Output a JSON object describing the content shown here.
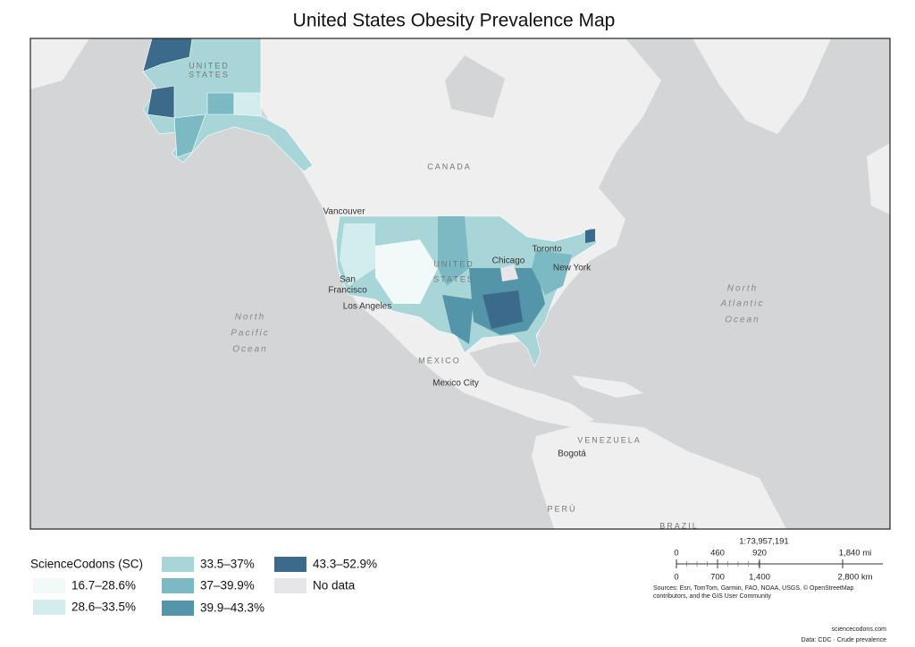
{
  "title": "United States Obesity Prevalence Map",
  "map": {
    "labels": {
      "canada": "CANADA",
      "alaska_us": [
        "UNITED",
        "STATES"
      ],
      "vancouver": "Vancouver",
      "toronto": "Toronto",
      "chicago": "Chicago",
      "new_york": "New York",
      "us": [
        "UNITED",
        "STATES"
      ],
      "san_francisco": [
        "San",
        "Francisco"
      ],
      "los_angeles": "Los Angeles",
      "north_pacific": [
        "North",
        "Pacific",
        "Ocean"
      ],
      "north_atlantic": [
        "North",
        "Atlantic",
        "Ocean"
      ],
      "mexico": "MÉXICO",
      "mexico_city": "Mexico City",
      "venezuela": "VENEZUELA",
      "bogota": "Bogotá",
      "peru": "PERÚ",
      "brazil": "BRAZIL"
    }
  },
  "legend": {
    "title": "ScienceCodons (SC)",
    "items": [
      {
        "label": "16.7–28.6%",
        "color": "#f1f9f9"
      },
      {
        "label": "28.6–33.5%",
        "color": "#d3ecec"
      },
      {
        "label": "33.5–37%",
        "color": "#a8d6d8"
      },
      {
        "label": "37–39.9%",
        "color": "#7bbac3"
      },
      {
        "label": "39.9–43.3%",
        "color": "#5495a9"
      },
      {
        "label": "43.3–52.9%",
        "color": "#3b6a8a"
      },
      {
        "label": "No data",
        "color": "#e6e6e9"
      }
    ]
  },
  "scale": {
    "ratio": "1:73,957,191",
    "mi": [
      "0",
      "460",
      "920",
      "1,840 mi"
    ],
    "km": [
      "0",
      "700",
      "1,400",
      "2,800 km"
    ],
    "sources": [
      "Sources: Esri, TomTom, Garmin, FAO, NOAA, USGS, © OpenStreetMap",
      "contributors, and the GIS User Community"
    ]
  },
  "footer": {
    "site": "sciencecodons.com",
    "data": "Data: CDC · Crude prevalence"
  }
}
